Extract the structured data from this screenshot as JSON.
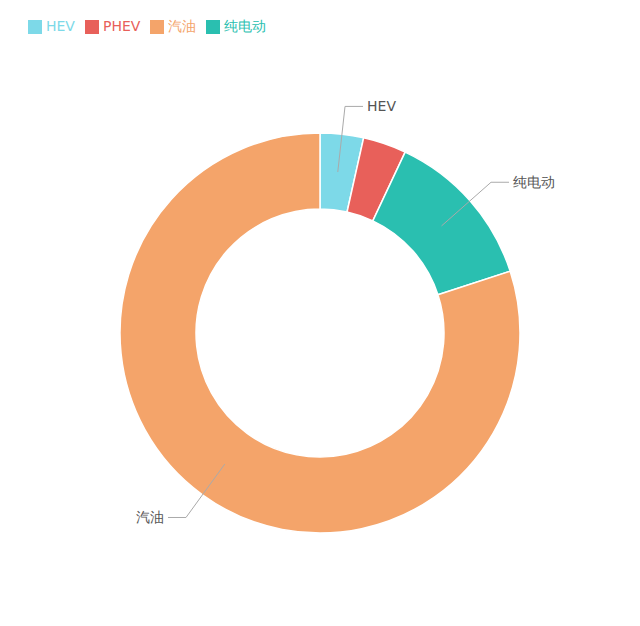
{
  "chart_data": {
    "type": "pie",
    "categories": [
      "HEV",
      "PHEV",
      "纯电动",
      "汽油"
    ],
    "values": [
      3.5,
      3.5,
      13.0,
      80.0
    ],
    "colors": [
      "#7DD9E8",
      "#E8605A",
      "#2ABFB0",
      "#F4A46A"
    ],
    "legend": "upper left",
    "annotations": [
      "HEV",
      "纯电动",
      "汽油"
    ]
  }
}
